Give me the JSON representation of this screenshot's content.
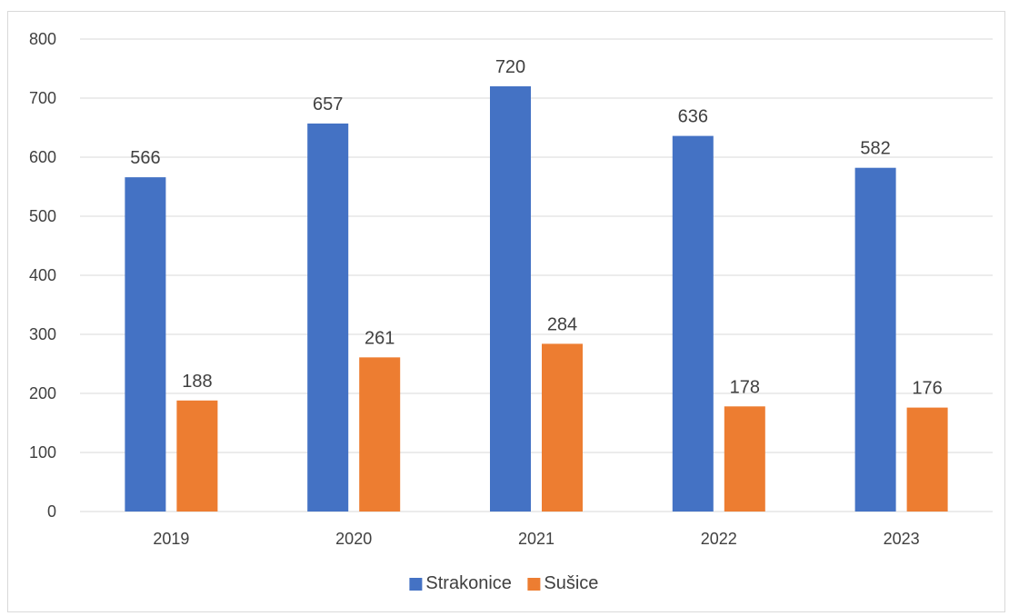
{
  "chart_data": {
    "type": "bar",
    "categories": [
      "2019",
      "2020",
      "2021",
      "2022",
      "2023"
    ],
    "series": [
      {
        "name": "Strakonice",
        "color": "#4472C4",
        "values": [
          566,
          657,
          720,
          636,
          582
        ]
      },
      {
        "name": "Sušice",
        "color": "#ED7D31",
        "values": [
          188,
          261,
          284,
          178,
          176
        ]
      }
    ],
    "y_ticks": [
      "0",
      "100",
      "200",
      "300",
      "400",
      "500",
      "600",
      "700",
      "800"
    ],
    "ylim": [
      0,
      800
    ],
    "grid": true,
    "legend_position": "bottom",
    "gridline_color": "#d9d9d9"
  }
}
